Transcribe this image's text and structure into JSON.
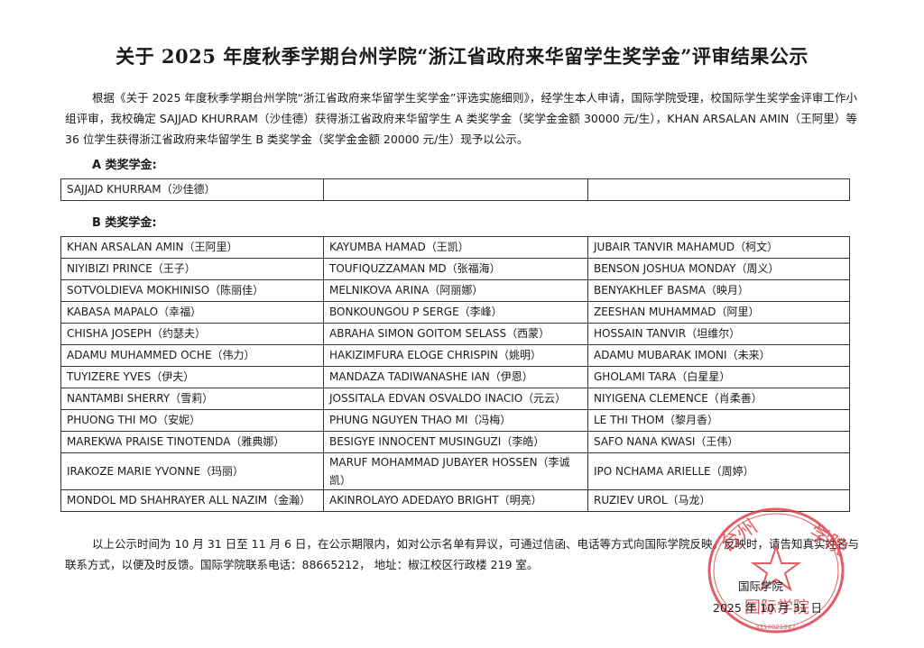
{
  "title": "关于 2025 年度秋季学期台州学院“浙江省政府来华留学生奖学金”评审结果公示",
  "intro": "根据《关于 2025 年度秋季学期台州学院“浙江省政府来华留学生奖学金”评选实施细则》，经学生本人申请，国际学院受理，校国际学生奖学金评审工作小组评审，我校确定 SAJJAD KHURRAM（沙佳德）获得浙江省政府来华留学生 A 类奖学金（奖学金金额 30000 元/生），KHAN ARSALAN AMIN（王阿里）等 36 位学生获得浙江省政府来华留学生 B 类奖学金（奖学金金额 20000 元/生）现予以公示。",
  "section_a_label": "A 类奖学金:",
  "section_a_rows": [
    [
      "SAJJAD KHURRAM（沙佳德）",
      "",
      ""
    ]
  ],
  "section_b_label": "B 类奖学金:",
  "section_b_rows": [
    [
      "KHAN ARSALAN AMIN（王阿里）",
      "KAYUMBA HAMAD（王凯）",
      "JUBAIR TANVIR MAHAMUD（柯文）"
    ],
    [
      "NIYIBIZI PRINCE（王子）",
      "TOUFIQUZZAMAN MD（张福海）",
      "BENSON JOSHUA MONDAY（周义）"
    ],
    [
      "SOTVOLDIEVA MOKHINISO（陈丽佳）",
      "MELNIKOVA ARINA（阿丽娜）",
      "BENYAKHLEF BASMA（映月）"
    ],
    [
      "KABASA MAPALO（幸福）",
      "BONKOUNGOU P SERGE（李峰）",
      "ZEESHAN MUHAMMAD（阿里）"
    ],
    [
      "CHISHA JOSEPH（约瑟夫）",
      "ABRAHA  SIMON GOITOM SELASS（西蒙）",
      "HOSSAIN TANVIR（坦维尔）"
    ],
    [
      "ADAMU MUHAMMED OCHE（伟力）",
      "HAKIZIMFURA ELOGE CHRISPIN（姚明）",
      "ADAMU MUBARAK IMONI（未来）"
    ],
    [
      "TUYIZERE YVES（伊夫）",
      "MANDAZA TADIWANASHE IAN（伊恩）",
      "GHOLAMI TARA（白星星）"
    ],
    [
      "NANTAMBI SHERRY（雪莉）",
      "JOSSITALA EDVAN OSVALDO INACIO（元云）",
      "NIYIGENA CLEMENCE（肖柔善）"
    ],
    [
      "PHUONG THI MO（安妮）",
      "PHUNG NGUYEN THAO MI（冯梅）",
      "LE THI THOM（黎月香）"
    ],
    [
      "MAREKWA PRAISE TINOTENDA（雅典娜）",
      "BESIGYE INNOCENT MUSINGUZI（李皓）",
      "SAFO NANA KWASI（王伟）"
    ],
    [
      "IRAKOZE MARIE YVONNE（玛丽）",
      "MARUF MOHAMMAD JUBAYER HOSSEN（李诚凯）",
      "IPO NCHAMA ARIELLE（周婷）"
    ],
    [
      "MONDOL MD SHAHRAYER ALL NAZIM（金瀚）",
      "AKINROLAYO ADEDAYO BRIGHT（明亮）",
      "RUZIEV UROL（马龙）"
    ]
  ],
  "note": "以上公示时间为 10 月 31 日至 11 月 6 日，在公示期限内，如对公示名单有异议，可通过信函、电话等方式向国际学院反映。反映时，请告知真实姓名与联系方式，以便及时反馈。国际学院联系电话：88665212，  地址：椒江校区行政楼 219 室。",
  "signature": {
    "department": "国际学院",
    "date": "2025 年 10 月 31 日"
  },
  "seal": {
    "text": "台州学院国际学院",
    "number": "3310021042",
    "color": "#d9363e"
  }
}
